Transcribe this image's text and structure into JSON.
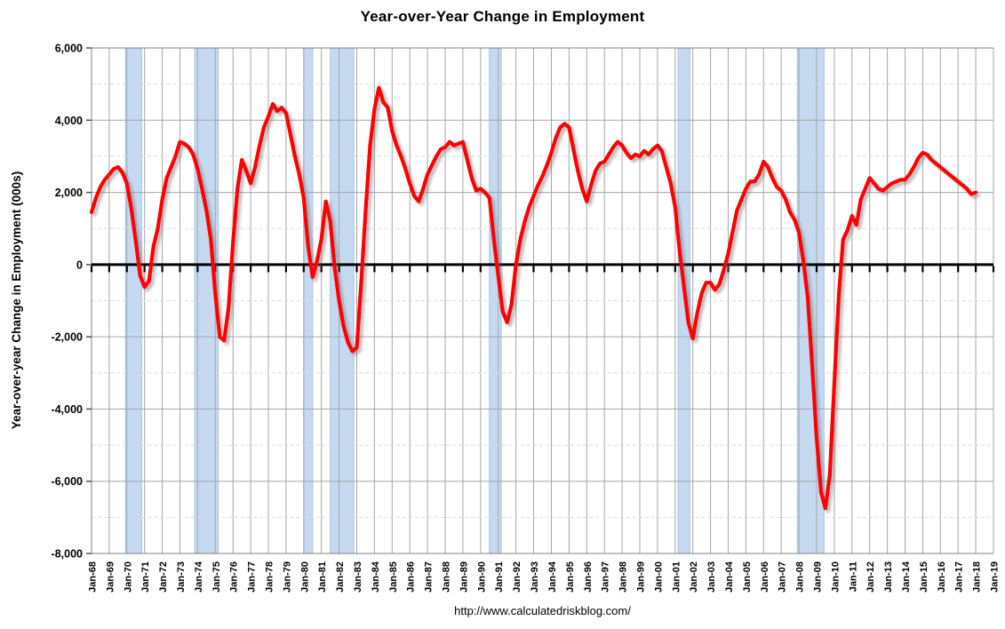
{
  "footer_url": "http://www.calculatedriskblog.com/",
  "colors": {
    "line": "#FF0000",
    "line_shadow": "#6B6B6B",
    "recession_band": "#C5D9F1",
    "recession_band_edge": "#A9C2E0",
    "major_grid": "#A6A6A6",
    "minor_grid": "#D9D9D9",
    "axis_frame": "#808080",
    "zero_axis": "#000000",
    "background": "#FFFFFF",
    "text": "#000000"
  },
  "chart_data": {
    "type": "line",
    "title": "Year-over-Year Change in Employment",
    "xlabel": "",
    "ylabel": "Year-over-year Change in Employment (000s)",
    "ylim": [
      -8000,
      6000
    ],
    "y_major_step": 2000,
    "y_minor_step": 1000,
    "grid": {
      "major": "solid",
      "minor": "dashed",
      "vertical": "every-year"
    },
    "legend": "none",
    "y_tick_labels": [
      "6,000",
      "4,000",
      "2,000",
      "0",
      "-2,000",
      "-4,000",
      "-6,000",
      "-8,000"
    ],
    "x_tick_labels": [
      "Jan-68",
      "Jan-69",
      "Jan-70",
      "Jan-71",
      "Jan-72",
      "Jan-73",
      "Jan-74",
      "Jan-75",
      "Jan-76",
      "Jan-77",
      "Jan-78",
      "Jan-79",
      "Jan-80",
      "Jan-81",
      "Jan-82",
      "Jan-83",
      "Jan-84",
      "Jan-85",
      "Jan-86",
      "Jan-87",
      "Jan-88",
      "Jan-89",
      "Jan-90",
      "Jan-91",
      "Jan-92",
      "Jan-93",
      "Jan-94",
      "Jan-95",
      "Jan-96",
      "Jan-97",
      "Jan-98",
      "Jan-99",
      "Jan-00",
      "Jan-01",
      "Jan-02",
      "Jan-03",
      "Jan-04",
      "Jan-05",
      "Jan-06",
      "Jan-07",
      "Jan-08",
      "Jan-09",
      "Jan-10",
      "Jan-11",
      "Jan-12",
      "Jan-13",
      "Jan-14",
      "Jan-15",
      "Jan-16",
      "Jan-17",
      "Jan-18",
      "Jan-19"
    ],
    "recession_bands": [
      {
        "start_year": 1969.917,
        "end_year": 1970.833
      },
      {
        "start_year": 1973.833,
        "end_year": 1975.167
      },
      {
        "start_year": 1980.0,
        "end_year": 1980.5
      },
      {
        "start_year": 1981.5,
        "end_year": 1982.833
      },
      {
        "start_year": 1990.5,
        "end_year": 1991.167
      },
      {
        "start_year": 2001.167,
        "end_year": 2001.833
      },
      {
        "start_year": 2007.917,
        "end_year": 2009.417
      }
    ],
    "series": [
      {
        "name": "Year-over-year change in employment (000s)",
        "color": "#FF0000",
        "x_start": "1968-01",
        "x_end": "2018-01",
        "points_per_year": 4,
        "values": [
          1450,
          1850,
          2150,
          2350,
          2500,
          2650,
          2700,
          2550,
          2250,
          1550,
          650,
          -300,
          -620,
          -450,
          500,
          1000,
          1800,
          2400,
          2700,
          3000,
          3400,
          3350,
          3250,
          3050,
          2650,
          2100,
          1500,
          700,
          -800,
          -2000,
          -2100,
          -1200,
          600,
          2100,
          2900,
          2600,
          2250,
          2700,
          3300,
          3800,
          4100,
          4450,
          4250,
          4350,
          4200,
          3600,
          3000,
          2500,
          1850,
          500,
          -350,
          100,
          700,
          1750,
          1200,
          -100,
          -1000,
          -1700,
          -2150,
          -2400,
          -2300,
          -500,
          1500,
          3300,
          4300,
          4900,
          4500,
          4350,
          3700,
          3300,
          3000,
          2650,
          2250,
          1900,
          1750,
          2100,
          2500,
          2750,
          3000,
          3200,
          3250,
          3400,
          3300,
          3350,
          3400,
          2900,
          2400,
          2050,
          2100,
          2000,
          1850,
          700,
          -300,
          -1300,
          -1600,
          -1100,
          0,
          700,
          1200,
          1600,
          1900,
          2200,
          2450,
          2750,
          3100,
          3500,
          3800,
          3900,
          3800,
          3200,
          2600,
          2100,
          1750,
          2200,
          2600,
          2800,
          2850,
          3050,
          3250,
          3400,
          3300,
          3100,
          2950,
          3050,
          3000,
          3150,
          3050,
          3200,
          3300,
          3150,
          2700,
          2250,
          1600,
          400,
          -600,
          -1600,
          -2050,
          -1350,
          -800,
          -500,
          -500,
          -700,
          -550,
          -150,
          300,
          900,
          1500,
          1800,
          2100,
          2300,
          2300,
          2500,
          2850,
          2700,
          2400,
          2150,
          2050,
          1800,
          1450,
          1250,
          900,
          100,
          -900,
          -2800,
          -4800,
          -6300,
          -6750,
          -5800,
          -3300,
          -900,
          700,
          950,
          1350,
          1100,
          1800,
          2100,
          2400,
          2250,
          2100,
          2050,
          2150,
          2250,
          2300,
          2350,
          2350,
          2500,
          2700,
          2950,
          3100,
          3050,
          2900,
          2800,
          2700,
          2600,
          2500,
          2400,
          2300,
          2200,
          2100,
          1950,
          2000
        ]
      }
    ]
  }
}
